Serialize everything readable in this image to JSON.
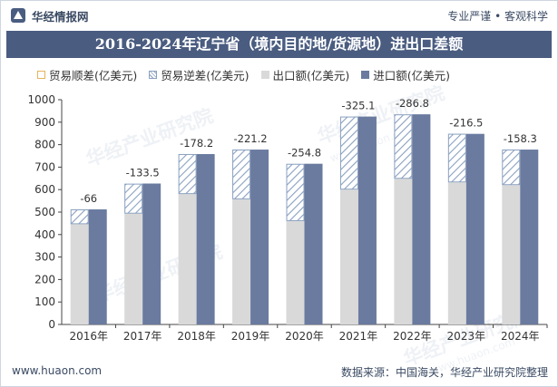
{
  "header": {
    "brand": "华经情报网",
    "tagline": "专业严谨 • 客观科学",
    "title": "2016-2024年辽宁省（境内目的地/货源地）进出口差额"
  },
  "legend": [
    {
      "label": "贸易顺差(亿美元)",
      "icon": "surplus-swatch"
    },
    {
      "label": "贸易逆差(亿美元)",
      "icon": "deficit-swatch"
    },
    {
      "label": "出口额(亿美元)",
      "icon": "export-swatch"
    },
    {
      "label": "进口额(亿美元)",
      "icon": "import-swatch"
    }
  ],
  "watermark": {
    "cn": "华经产业研究院",
    "en": "www.huaon.com"
  },
  "footer": {
    "site": "www.huaon.com",
    "source": "数据来源：中国海关，华经产业研究院整理"
  },
  "colors": {
    "export": "#d9d9d9",
    "import": "#6a7b9f",
    "deficit": "#8aa0c0",
    "surplus": "#e6b35a",
    "title_band": "#4a5c80"
  },
  "chart_data": {
    "type": "bar",
    "categories": [
      "2016年",
      "2017年",
      "2018年",
      "2019年",
      "2020年",
      "2021年",
      "2022年",
      "2023年",
      "2024年"
    ],
    "series": [
      {
        "name": "出口额(亿美元)",
        "values": [
          446,
          493,
          580,
          557,
          460,
          600,
          648,
          632,
          620
        ]
      },
      {
        "name": "进口额(亿美元)",
        "values": [
          512,
          627,
          758,
          778,
          715,
          925,
          935,
          848,
          778
        ]
      },
      {
        "name": "贸易逆差(亿美元)",
        "values": [
          -66,
          -133.5,
          -178.2,
          -221.2,
          -254.8,
          -325.1,
          -286.8,
          -216.5,
          -158.3
        ]
      }
    ],
    "data_labels": [
      "-66",
      "-133.5",
      "-178.2",
      "-221.2",
      "-254.8",
      "-325.1",
      "-286.8",
      "-216.5",
      "-158.3"
    ],
    "ylim": [
      0,
      1000
    ],
    "yticks": [
      "0",
      "100",
      "200",
      "300",
      "400",
      "500",
      "600",
      "700",
      "800",
      "900",
      "1000"
    ],
    "grid": false,
    "legend_position": "top"
  }
}
